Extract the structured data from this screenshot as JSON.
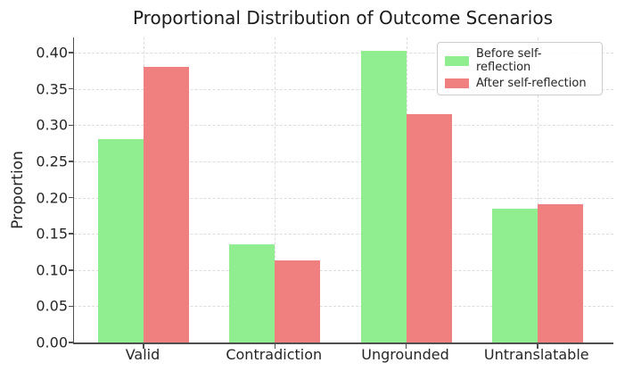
{
  "chart_data": {
    "type": "bar",
    "title": "Proportional Distribution of Outcome Scenarios",
    "xlabel": "",
    "ylabel": "Proportion",
    "categories": [
      "Valid",
      "Contradiction",
      "Ungrounded",
      "Untranslatable"
    ],
    "series": [
      {
        "name": "Before self-reflection",
        "color": "#90EE90",
        "values": [
          0.281,
          0.136,
          0.403,
          0.185
        ]
      },
      {
        "name": "After self-reflection",
        "color": "#F08080",
        "values": [
          0.381,
          0.113,
          0.315,
          0.191
        ]
      }
    ],
    "ylim": [
      0,
      0.421
    ],
    "yticks": [
      0,
      0.05,
      0.1,
      0.15,
      0.2,
      0.25,
      0.3,
      0.35,
      0.4
    ],
    "ytick_labels": [
      "0.00",
      "0.05",
      "0.10",
      "0.15",
      "0.20",
      "0.25",
      "0.30",
      "0.35",
      "0.40"
    ],
    "grid": true,
    "grid_style": "dashed",
    "legend_position": "upper right",
    "colors": {
      "grid": "#dcdcdc",
      "spine": "#4f4f4f",
      "tick_text": "#262626",
      "title_text": "#1a1a1a",
      "legend_border": "#cccccc"
    }
  }
}
